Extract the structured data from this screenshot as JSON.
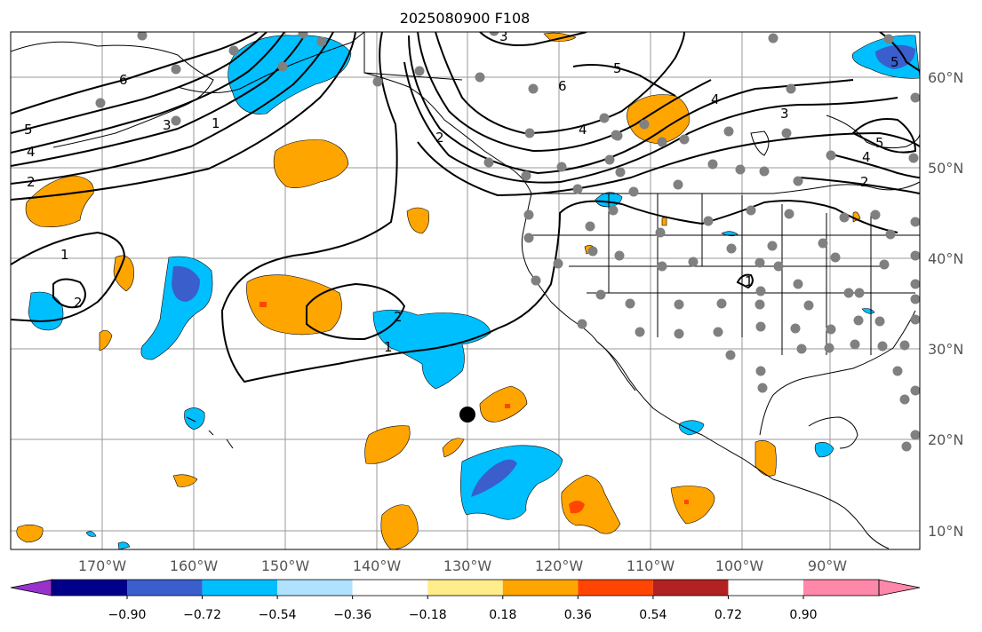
{
  "title": "2025080900 F108",
  "map": {
    "lon_range": [
      -180,
      -81
    ],
    "lat_range": [
      8,
      65
    ],
    "lon_ticks": [
      "170°W",
      "160°W",
      "150°W",
      "140°W",
      "130°W",
      "120°W",
      "110°W",
      "100°W",
      "90°W"
    ],
    "lat_ticks": [
      "60°N",
      "50°N",
      "40°N",
      "30°N",
      "20°N",
      "10°N"
    ],
    "grid": true,
    "contour_labels": [
      "6",
      "5",
      "4",
      "3",
      "2",
      "1",
      "2",
      "1",
      "2",
      "1",
      "6",
      "5",
      "4",
      "3",
      "2",
      "4",
      "5",
      "4",
      "3",
      "2",
      "1",
      "5"
    ],
    "storm_marker": "black-dot",
    "station_marker": "gray-dot"
  },
  "colorbar": {
    "ticks": [
      "−0.90",
      "−0.72",
      "−0.54",
      "−0.36",
      "−0.18",
      "0.18",
      "0.36",
      "0.54",
      "0.72",
      "0.90"
    ],
    "colors": [
      "#9932cc",
      "#00008b",
      "#3a5fcd",
      "#00bfff",
      "#b0e2ff",
      "#ffffff",
      "#ffec8b",
      "#ffa500",
      "#ff4500",
      "#b22222",
      "#ff88aa"
    ]
  },
  "fill_colors": {
    "light_blue": "#00bfff",
    "dark_blue": "#3a5fcd",
    "orange": "#ffa500",
    "red": "#ff4500"
  }
}
